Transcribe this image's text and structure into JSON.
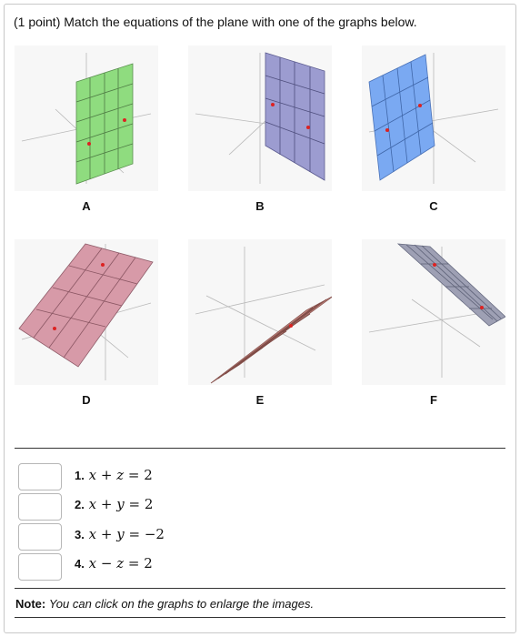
{
  "question": {
    "points": "(1 point)",
    "prompt": "Match the equations of the plane with one of the graphs below."
  },
  "graphs": [
    {
      "label": "A",
      "plane_color": "#8fdc7f"
    },
    {
      "label": "B",
      "plane_color": "#9c9cd0"
    },
    {
      "label": "C",
      "plane_color": "#7aa9f2"
    },
    {
      "label": "D",
      "plane_color": "#d79aa8"
    },
    {
      "label": "E",
      "plane_color": "#c98c86"
    },
    {
      "label": "F",
      "plane_color": "#9ea0b4"
    }
  ],
  "equations": [
    {
      "number": "1.",
      "v1": "x",
      "op": "+",
      "v2": "z",
      "rhs": "= 2",
      "value": ""
    },
    {
      "number": "2.",
      "v1": "x",
      "op": "+",
      "v2": "y",
      "rhs": "= 2",
      "value": ""
    },
    {
      "number": "3.",
      "v1": "x",
      "op": "+",
      "v2": "y",
      "rhs": "= −2",
      "value": ""
    },
    {
      "number": "4.",
      "v1": "x",
      "op": "−",
      "v2": "z",
      "rhs": "= 2",
      "value": ""
    }
  ],
  "note": {
    "label": "Note:",
    "text": "You can click on the graphs to enlarge the images."
  }
}
